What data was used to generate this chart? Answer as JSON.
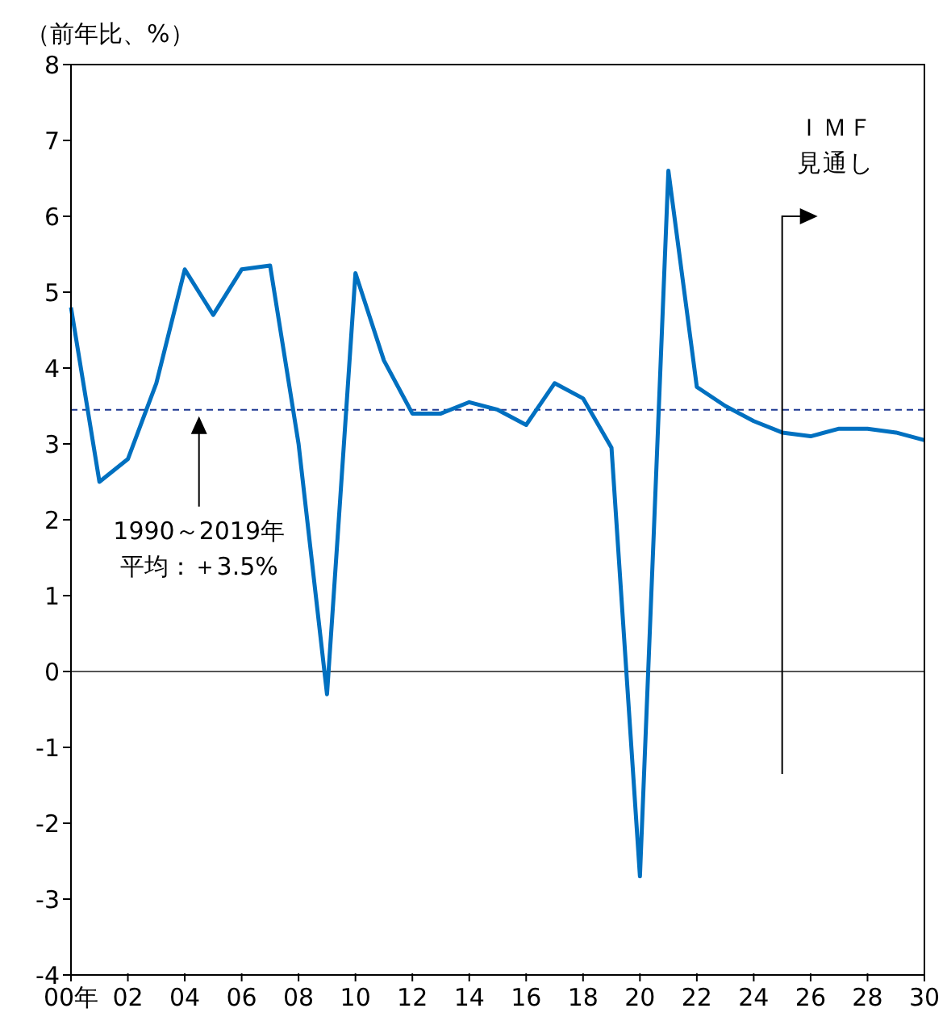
{
  "chart_data": {
    "type": "line",
    "ylabel": "（前年比、%）",
    "categories": [
      "00年",
      null,
      "02",
      null,
      "04",
      null,
      "06",
      null,
      "08",
      null,
      "10",
      null,
      "12",
      null,
      "14",
      null,
      "16",
      null,
      "18",
      null,
      "20",
      null,
      "22",
      null,
      "24",
      null,
      "26",
      null,
      "28",
      null,
      "30"
    ],
    "series": [
      {
        "color": "#0070c0",
        "values": [
          4.8,
          2.5,
          2.8,
          3.8,
          5.3,
          4.7,
          5.3,
          5.35,
          3.0,
          -0.3,
          5.25,
          4.1,
          3.4,
          3.4,
          3.55,
          3.45,
          3.25,
          3.8,
          3.6,
          2.95,
          -2.7,
          6.6,
          3.75,
          3.5,
          3.3,
          3.15,
          3.1,
          3.2,
          3.2,
          3.15,
          3.05
        ]
      }
    ],
    "ylim": [
      -4,
      8
    ],
    "yticks": [
      -4,
      -3,
      -2,
      -1,
      0,
      1,
      2,
      3,
      4,
      5,
      6,
      7,
      8
    ],
    "ref_lines": [
      {
        "axis": "y",
        "value": 3.45,
        "color": "#1f3a93",
        "line_style": "dashed"
      },
      {
        "axis": "y",
        "value": 0,
        "color": "#555555",
        "line_style": "solid"
      }
    ],
    "annotations": [
      "1990～2019年平均：＋3.5%",
      "ＩＭＦ見通し"
    ],
    "grid": false,
    "legend": false,
    "marker": "none",
    "line_style": "solid"
  }
}
